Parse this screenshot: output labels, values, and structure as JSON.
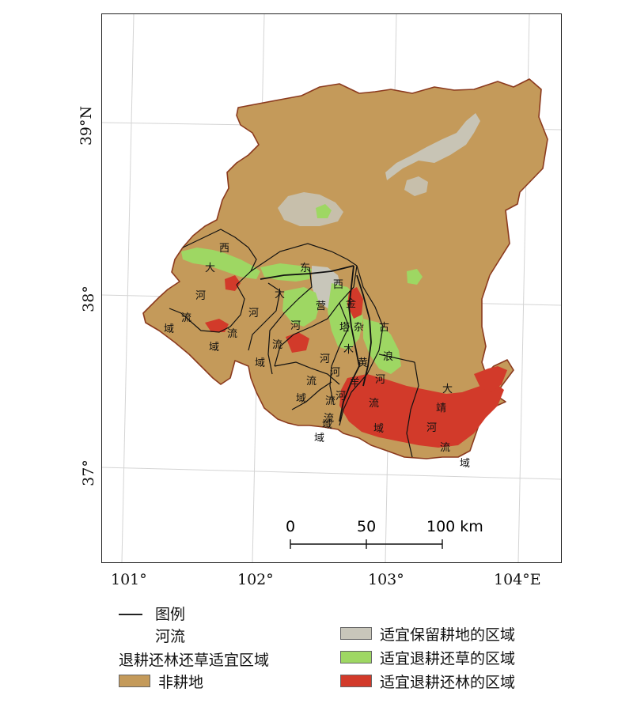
{
  "axes": {
    "lat_labels": [
      "39°N",
      "38°",
      "37°"
    ],
    "lon_labels": [
      "101°",
      "102°",
      "103°",
      "104°E"
    ]
  },
  "scale_bar": {
    "tick_labels": [
      "0",
      "50",
      "100 km"
    ]
  },
  "legend": {
    "title": "图例",
    "river_label": "河流",
    "suitability_title": "退耕还林还草适宜区域",
    "non_farmland_label": "非耕地",
    "keep_farmland_label": "适宜保留耕地的区域",
    "to_grass_label": "适宜退耕还草的区域",
    "to_forest_label": "适宜退耕还林的区域"
  },
  "colors": {
    "non_farmland": "#C49A5A",
    "keep_farmland": "#C8C6BA",
    "to_grass": "#9ED763",
    "to_forest": "#D23A2A",
    "boundary": "#8B3A1E",
    "river": "#111111"
  },
  "basins": [
    {
      "chars": [
        "西",
        "大",
        "河",
        "流",
        "域"
      ]
    },
    {
      "chars": [
        "东",
        "大",
        "河",
        "流",
        "域"
      ]
    },
    {
      "chars": [
        "西",
        "营",
        "河",
        "流",
        "域"
      ]
    },
    {
      "chars": [
        "金",
        "塔",
        "河",
        "流",
        "域"
      ]
    },
    {
      "chars": [
        "杂",
        "木",
        "河",
        "流",
        "域"
      ]
    },
    {
      "chars": [
        "黄",
        "羊",
        "河",
        "流",
        "域"
      ]
    },
    {
      "chars": [
        "古",
        "浪",
        "河",
        "流",
        "域"
      ]
    },
    {
      "chars": [
        "大",
        "靖",
        "河",
        "流",
        "域"
      ]
    }
  ]
}
